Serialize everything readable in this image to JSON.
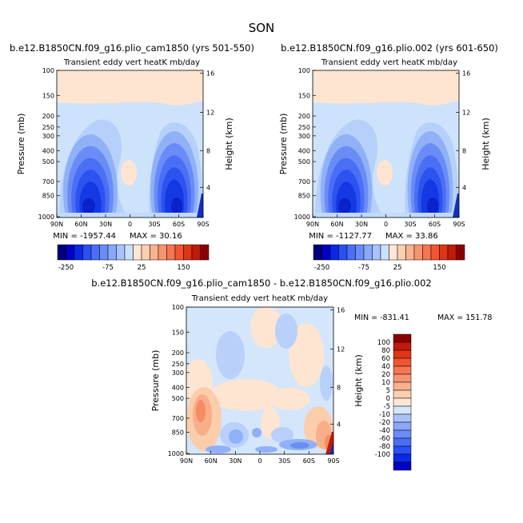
{
  "title": "SON",
  "colors": {
    "cold": [
      "#00007a",
      "#0000c8",
      "#0a28e6",
      "#2a50f4",
      "#4a6ef6",
      "#6a8cf8",
      "#8aa8fa",
      "#aac2fb",
      "#cae0fd"
    ],
    "warm": [
      "#fde8d6",
      "#fbcfb0",
      "#f9b290",
      "#f79470",
      "#f57650",
      "#f05530",
      "#de3418",
      "#c01a0a",
      "#8c0000"
    ],
    "near_zero_cold": "#d4e6fb",
    "near_zero_warm": "#fde5d2"
  },
  "chart_data": [
    {
      "type": "heatmap",
      "title": "b.e12.B1850CN.f09_g16.plio_cam1850 (yrs 501-550)",
      "subtitle": "Transient eddy vert heatK mb/day",
      "xlabel": "",
      "ylabel": "Pressure (mb)",
      "ylabel_right": "Height (km)",
      "x_ticks": [
        "90N",
        "60N",
        "30N",
        "0",
        "30S",
        "60S",
        "90S"
      ],
      "y_ticks": [
        "100",
        "150",
        "200",
        "250",
        "300",
        "400",
        "500",
        "700",
        "850",
        "1000"
      ],
      "y_ticks_right": [
        "16",
        "12",
        "8",
        "4"
      ],
      "min_label": "MIN = -1957.44",
      "max_label": "MAX = 30.16",
      "levels": [
        "-250",
        "-75",
        "25",
        "150"
      ]
    },
    {
      "type": "heatmap",
      "title": "b.e12.B1850CN.f09_g16.plio.002 (yrs 601-650)",
      "subtitle": "Transient eddy vert heatK mb/day",
      "xlabel": "",
      "ylabel": "Pressure (mb)",
      "ylabel_right": "Height (km)",
      "x_ticks": [
        "90N",
        "60N",
        "30N",
        "0",
        "30S",
        "60S",
        "90S"
      ],
      "y_ticks": [
        "100",
        "150",
        "200",
        "250",
        "300",
        "400",
        "500",
        "700",
        "850",
        "1000"
      ],
      "y_ticks_right": [
        "16",
        "12",
        "8",
        "4"
      ],
      "min_label": "MIN = -1127.77",
      "max_label": "MAX = 33.86",
      "levels": [
        "-250",
        "-75",
        "25",
        "150"
      ]
    },
    {
      "type": "heatmap",
      "title": "b.e12.B1850CN.f09_g16.plio_cam1850 - b.e12.B1850CN.f09_g16.plio.002",
      "subtitle": "Transient eddy vert heatK mb/day",
      "xlabel": "",
      "ylabel": "Pressure (mb)",
      "ylabel_right": "Height (km)",
      "x_ticks": [
        "90N",
        "60N",
        "30N",
        "0",
        "30S",
        "60S",
        "90S"
      ],
      "y_ticks": [
        "100",
        "150",
        "200",
        "250",
        "300",
        "400",
        "500",
        "700",
        "850",
        "1000"
      ],
      "y_ticks_right": [
        "16",
        "12",
        "8",
        "4"
      ],
      "min_label": "MIN = -831.41",
      "max_label": "MAX = 151.78",
      "levels": [
        "100",
        "80",
        "60",
        "40",
        "20",
        "10",
        "5",
        "0",
        "-5",
        "-10",
        "-20",
        "-40",
        "-60",
        "-80",
        "-100"
      ]
    }
  ]
}
